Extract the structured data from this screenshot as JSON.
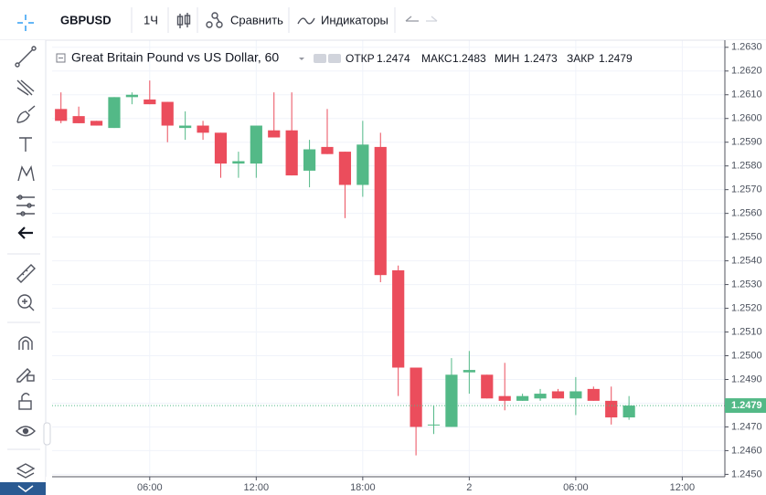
{
  "toolbar": {
    "symbol": "GBPUSD",
    "interval": "1Ч",
    "compare": "Сравнить",
    "indicators": "Индикаторы"
  },
  "legend": {
    "title": "Great Britain Pound vs US Dollar, 60",
    "open_label": "ОТКР",
    "high_label": "МАКС",
    "low_label": "МИН",
    "close_label": "ЗАКР"
  },
  "chart_data": {
    "type": "candlestick",
    "x": [
      1,
      2,
      3,
      4,
      5,
      6,
      7,
      8,
      9,
      10,
      11,
      12,
      13,
      14,
      15,
      16,
      17,
      18,
      19,
      20,
      21,
      22,
      23,
      24,
      25,
      26,
      27,
      28,
      29,
      30,
      31,
      32,
      33
    ],
    "open": [
      1.2604,
      1.2601,
      1.2599,
      1.2596,
      1.2609,
      1.2608,
      1.2607,
      1.2596,
      1.2597,
      1.2594,
      1.2581,
      1.2581,
      1.2595,
      1.2595,
      1.2578,
      1.2588,
      1.2586,
      1.2572,
      1.2588,
      1.2536,
      1.2495,
      1.2471,
      1.247,
      1.2493,
      1.2492,
      1.2483,
      1.2481,
      1.2482,
      1.2485,
      1.2482,
      1.2486,
      1.2481,
      1.2474
    ],
    "high": [
      1.2611,
      1.2605,
      1.2599,
      1.2609,
      1.2611,
      1.2616,
      1.2607,
      1.2603,
      1.2599,
      1.2594,
      1.2586,
      1.2597,
      1.2611,
      1.2611,
      1.2591,
      1.2604,
      1.2586,
      1.2599,
      1.2594,
      1.2538,
      1.2495,
      1.2479,
      1.2499,
      1.2502,
      1.2492,
      1.2497,
      1.2484,
      1.2486,
      1.2486,
      1.2491,
      1.2487,
      1.2487,
      1.2483
    ],
    "low": [
      1.2598,
      1.2598,
      1.2597,
      1.2596,
      1.2606,
      1.2606,
      1.259,
      1.2591,
      1.2591,
      1.2575,
      1.2575,
      1.2575,
      1.2592,
      1.2576,
      1.2571,
      1.2585,
      1.2558,
      1.2567,
      1.2531,
      1.2483,
      1.2458,
      1.2467,
      1.247,
      1.2484,
      1.2482,
      1.2477,
      1.2481,
      1.2481,
      1.2482,
      1.2475,
      1.2481,
      1.2471,
      1.2473
    ],
    "close": [
      1.2599,
      1.2598,
      1.2597,
      1.2609,
      1.261,
      1.2606,
      1.2597,
      1.2597,
      1.2594,
      1.2581,
      1.2582,
      1.2597,
      1.2592,
      1.2576,
      1.2587,
      1.2585,
      1.2572,
      1.2589,
      1.2534,
      1.2495,
      1.247,
      1.2471,
      1.2492,
      1.2494,
      1.2482,
      1.2481,
      1.2483,
      1.2484,
      1.2482,
      1.2485,
      1.2481,
      1.2474,
      1.2479
    ],
    "up_color": "#53b987",
    "down_color": "#eb4d5c",
    "xlim": [
      0.5,
      38.4
    ],
    "ylim": [
      1.2449,
      1.2633
    ],
    "xticks": [
      {
        "value": 6,
        "label": "06:00"
      },
      {
        "value": 12,
        "label": "12:00"
      },
      {
        "value": 18,
        "label": "18:00"
      },
      {
        "value": 24,
        "label": "2"
      },
      {
        "value": 30,
        "label": "06:00"
      },
      {
        "value": 36,
        "label": "12:00"
      }
    ],
    "yticks": [
      {
        "value": 1.245,
        "label": "1.2450"
      },
      {
        "value": 1.246,
        "label": "1.2460"
      },
      {
        "value": 1.247,
        "label": "1.2470"
      },
      {
        "value": 1.248,
        "label": "1.2480"
      },
      {
        "value": 1.249,
        "label": "1.2490"
      },
      {
        "value": 1.25,
        "label": "1.2500"
      },
      {
        "value": 1.251,
        "label": "1.2510"
      },
      {
        "value": 1.252,
        "label": "1.2520"
      },
      {
        "value": 1.253,
        "label": "1.2530"
      },
      {
        "value": 1.254,
        "label": "1.2540"
      },
      {
        "value": 1.255,
        "label": "1.2550"
      },
      {
        "value": 1.256,
        "label": "1.2560"
      },
      {
        "value": 1.257,
        "label": "1.2570"
      },
      {
        "value": 1.258,
        "label": "1.2580"
      },
      {
        "value": 1.259,
        "label": "1.2590"
      },
      {
        "value": 1.26,
        "label": "1.2600"
      },
      {
        "value": 1.261,
        "label": "1.2610"
      },
      {
        "value": 1.262,
        "label": "1.2620"
      },
      {
        "value": 1.263,
        "label": "1.2630"
      }
    ],
    "grid": true
  }
}
